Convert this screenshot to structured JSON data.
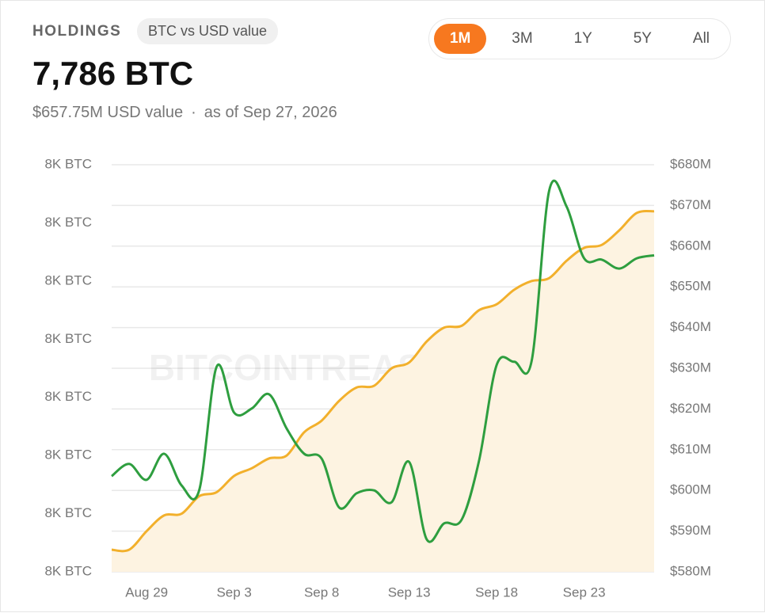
{
  "header": {
    "section": "HOLDINGS",
    "badge": "BTC vs USD value",
    "amount": "7,786 BTC",
    "usd_value": "$657.75M USD value",
    "separator": "·",
    "as_of": "as of Sep 27, 2026",
    "ranges": [
      "1M",
      "3M",
      "1Y",
      "5Y",
      "All"
    ],
    "active_range": 0
  },
  "chart_data": {
    "type": "line",
    "watermark": "BITCOINTREASURIES.NET",
    "categories": [
      null,
      null,
      "Aug 29",
      null,
      null,
      null,
      null,
      "Sep 3",
      null,
      null,
      null,
      null,
      "Sep 8",
      null,
      null,
      null,
      null,
      "Sep 13",
      null,
      null,
      null,
      null,
      "Sep 18",
      null,
      null,
      null,
      null,
      "Sep 23",
      null,
      null,
      null,
      null
    ],
    "series": [
      {
        "color": "#f2b02c",
        "area": true,
        "values": [
          7780.38,
          7780.38,
          7780.7,
          7780.97,
          7781.0,
          7781.3,
          7781.37,
          7781.65,
          7781.78,
          7781.95,
          7782.0,
          7782.4,
          7782.6,
          7782.94,
          7783.17,
          7783.2,
          7783.5,
          7783.6,
          7783.96,
          7784.2,
          7784.23,
          7784.5,
          7784.6,
          7784.85,
          7785.0,
          7785.05,
          7785.35,
          7785.57,
          7785.62,
          7785.87,
          7786.17,
          7786.2
        ]
      },
      {
        "color": "#2e9e3f",
        "axis": "y2",
        "values": [
          603.5,
          606.5,
          602.6,
          609,
          601.2,
          600,
          630.4,
          619.1,
          620.1,
          623.6,
          615.2,
          609,
          607.8,
          595.8,
          599.3,
          600,
          597.1,
          607,
          588,
          591.9,
          592.8,
          607.4,
          630.8,
          631.6,
          631.8,
          673.6,
          669.7,
          657,
          656.7,
          654.5,
          657,
          657.75
        ]
      }
    ],
    "ylim": [
      7780,
      7787
    ],
    "yticks": [
      {
        "value": 7780,
        "label": "8K BTC"
      },
      {
        "value": 7781,
        "label": "8K BTC"
      },
      {
        "value": 7782,
        "label": "8K BTC"
      },
      {
        "value": 7783,
        "label": "8K BTC"
      },
      {
        "value": 7784,
        "label": "8K BTC"
      },
      {
        "value": 7785,
        "label": "8K BTC"
      },
      {
        "value": 7786,
        "label": "8K BTC"
      },
      {
        "value": 7787,
        "label": "8K BTC"
      }
    ],
    "y2lim": [
      580,
      680
    ],
    "y2ticks": [
      {
        "value": 580,
        "label": "$580M"
      },
      {
        "value": 590,
        "label": "$590M"
      },
      {
        "value": 600,
        "label": "$600M"
      },
      {
        "value": 610,
        "label": "$610M"
      },
      {
        "value": 620,
        "label": "$620M"
      },
      {
        "value": 630,
        "label": "$630M"
      },
      {
        "value": 640,
        "label": "$640M"
      },
      {
        "value": 650,
        "label": "$650M"
      },
      {
        "value": 660,
        "label": "$660M"
      },
      {
        "value": 670,
        "label": "$670M"
      },
      {
        "value": 680,
        "label": "$680M"
      }
    ],
    "grid": true
  }
}
